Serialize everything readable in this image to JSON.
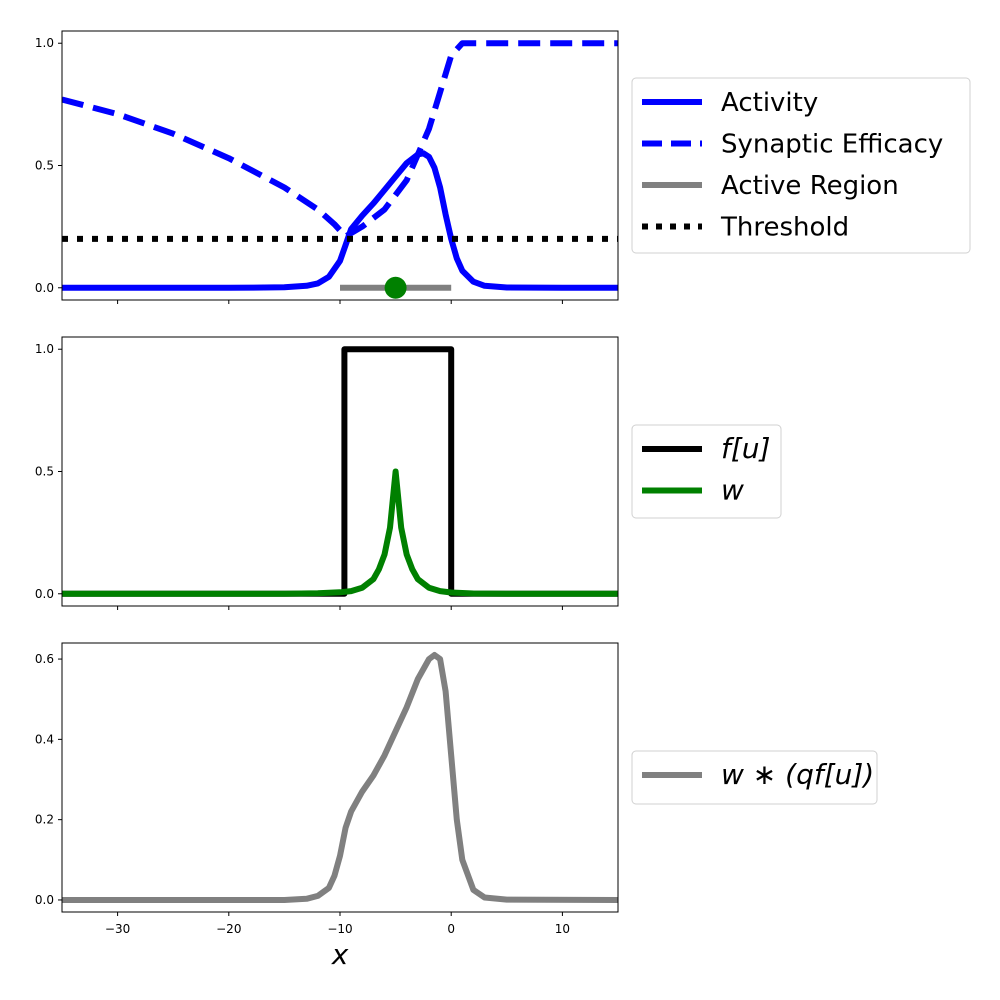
{
  "chart_data": [
    {
      "type": "line",
      "xlim": [
        -35,
        15
      ],
      "ylim": [
        -0.05,
        1.05
      ],
      "y_ticks": [
        0.0,
        0.5,
        1.0
      ],
      "y_tick_labels": [
        "0.0",
        "0.5",
        "1.0"
      ],
      "x_ticks": [
        -30,
        -20,
        -10,
        0,
        10
      ],
      "x_tick_labels_visible": false,
      "grid": false,
      "legend_position": "outside-right",
      "series": [
        {
          "name": "Activity",
          "style": "solid",
          "color": "#0000ff",
          "x": [
            -35,
            -20,
            -15,
            -13,
            -12,
            -11,
            -10,
            -9.5,
            -9,
            -8,
            -7,
            -6,
            -5,
            -4,
            -3,
            -2.5,
            -2,
            -1.5,
            -1,
            -0.5,
            0,
            0.5,
            1,
            2,
            3,
            5,
            10,
            15
          ],
          "y": [
            0.0,
            0.0,
            0.002,
            0.008,
            0.018,
            0.045,
            0.11,
            0.175,
            0.24,
            0.295,
            0.345,
            0.4,
            0.455,
            0.51,
            0.545,
            0.55,
            0.535,
            0.49,
            0.41,
            0.3,
            0.2,
            0.12,
            0.07,
            0.025,
            0.008,
            0.001,
            0.0,
            0.0
          ]
        },
        {
          "name": "Synaptic Efficacy",
          "style": "dashed",
          "color": "#0000ff",
          "x": [
            -35,
            -30,
            -25,
            -20,
            -15,
            -12,
            -10.5,
            -9.5,
            -8,
            -6,
            -4,
            -2,
            0,
            1,
            5,
            10,
            15
          ],
          "y": [
            0.77,
            0.71,
            0.63,
            0.53,
            0.41,
            0.32,
            0.26,
            0.21,
            0.25,
            0.32,
            0.44,
            0.65,
            0.95,
            1.0,
            1.0,
            1.0,
            1.0
          ]
        },
        {
          "name": "Active Region",
          "style": "solid",
          "color": "#808080",
          "x": [
            -10,
            0
          ],
          "y": [
            0.0,
            0.0
          ]
        },
        {
          "name": "Threshold",
          "style": "dotted",
          "color": "#000000",
          "x": [
            -35,
            15
          ],
          "y": [
            0.2,
            0.2
          ]
        }
      ],
      "marker": {
        "x": -5,
        "y": 0.0,
        "color": "#008000"
      }
    },
    {
      "type": "line",
      "xlim": [
        -35,
        15
      ],
      "ylim": [
        -0.05,
        1.05
      ],
      "y_ticks": [
        0.0,
        0.5,
        1.0
      ],
      "y_tick_labels": [
        "0.0",
        "0.5",
        "1.0"
      ],
      "x_ticks": [
        -30,
        -20,
        -10,
        0,
        10
      ],
      "x_tick_labels_visible": false,
      "grid": false,
      "legend_position": "outside-right",
      "series": [
        {
          "name": "f[u]",
          "style": "solid",
          "color": "#000000",
          "x": [
            -35,
            -9.6,
            -9.6,
            0,
            0,
            15
          ],
          "y": [
            0.0,
            0.0,
            1.0,
            1.0,
            0.0,
            0.0
          ]
        },
        {
          "name": "w",
          "style": "solid",
          "color": "#008000",
          "x": [
            -35,
            -15,
            -12,
            -10,
            -9,
            -8,
            -7,
            -6.5,
            -6,
            -5.5,
            -5,
            -4.5,
            -4,
            -3.5,
            -3,
            -2,
            -1,
            0,
            2,
            5,
            15
          ],
          "y": [
            0.0,
            0.0,
            0.002,
            0.006,
            0.011,
            0.025,
            0.06,
            0.1,
            0.16,
            0.27,
            0.5,
            0.27,
            0.16,
            0.1,
            0.06,
            0.025,
            0.011,
            0.005,
            0.001,
            0.0,
            0.0
          ]
        }
      ]
    },
    {
      "type": "line",
      "xlim": [
        -35,
        15
      ],
      "ylim": [
        -0.03,
        0.64
      ],
      "y_ticks": [
        0.0,
        0.2,
        0.4,
        0.6
      ],
      "y_tick_labels": [
        "0.0",
        "0.2",
        "0.4",
        "0.6"
      ],
      "x_ticks": [
        -30,
        -20,
        -10,
        0,
        10
      ],
      "x_tick_labels": [
        "−30",
        "−20",
        "−10",
        "0",
        "10"
      ],
      "xlabel": "x",
      "grid": false,
      "legend_position": "outside-right",
      "series": [
        {
          "name": "w ∗ (qf[u])",
          "style": "solid",
          "color": "#808080",
          "x": [
            -35,
            -15,
            -13,
            -12,
            -11,
            -10.5,
            -10,
            -9.5,
            -9,
            -8,
            -7,
            -6,
            -5,
            -4,
            -3,
            -2,
            -1.5,
            -1,
            -0.5,
            0,
            0.5,
            1,
            2,
            3,
            5,
            15
          ],
          "y": [
            0.0,
            0.0,
            0.003,
            0.01,
            0.03,
            0.06,
            0.11,
            0.18,
            0.22,
            0.27,
            0.31,
            0.36,
            0.42,
            0.48,
            0.55,
            0.6,
            0.61,
            0.6,
            0.52,
            0.36,
            0.2,
            0.1,
            0.025,
            0.006,
            0.001,
            0.0
          ]
        }
      ]
    }
  ]
}
